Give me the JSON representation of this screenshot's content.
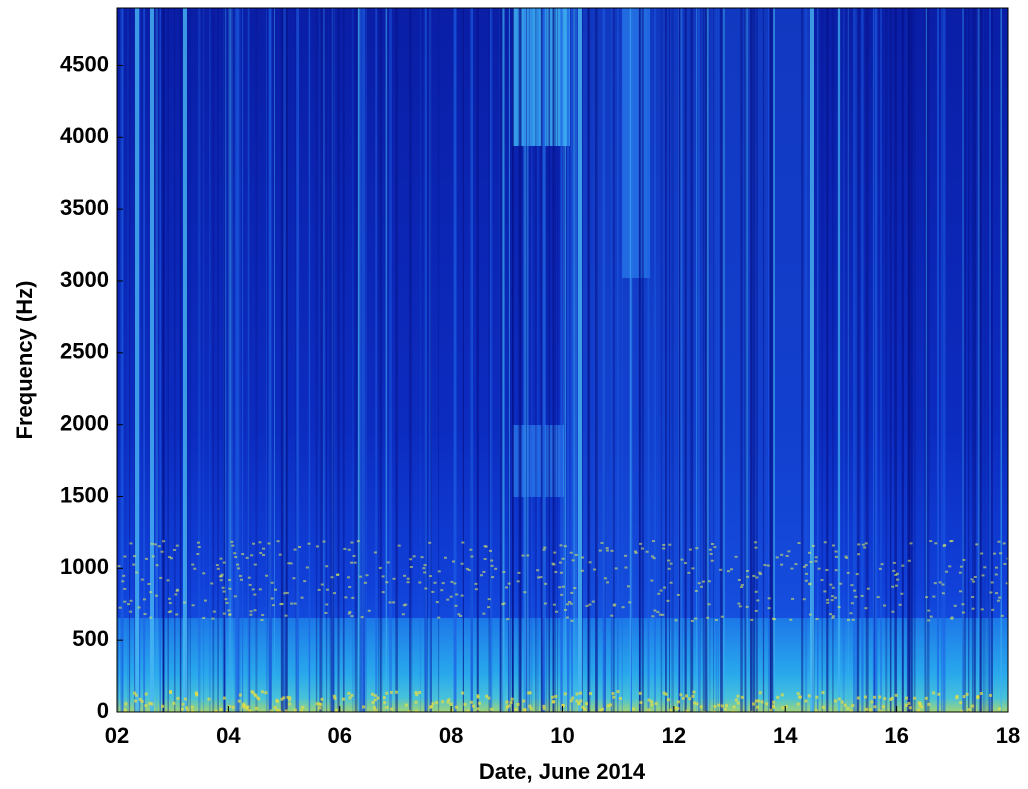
{
  "chart_data": {
    "type": "spectrogram",
    "xlabel": "Date, June 2014",
    "ylabel": "Frequency (Hz)",
    "xlim": [
      2,
      18
    ],
    "xticks": [
      {
        "value": 2,
        "label": "02"
      },
      {
        "value": 4,
        "label": "04"
      },
      {
        "value": 6,
        "label": "06"
      },
      {
        "value": 8,
        "label": "08"
      },
      10,
      12,
      14,
      16,
      18
    ],
    "ylim": [
      0,
      4900
    ],
    "yticks": [
      0,
      500,
      1000,
      1500,
      2000,
      2500,
      3000,
      3500,
      4000,
      4500
    ]
  }
}
